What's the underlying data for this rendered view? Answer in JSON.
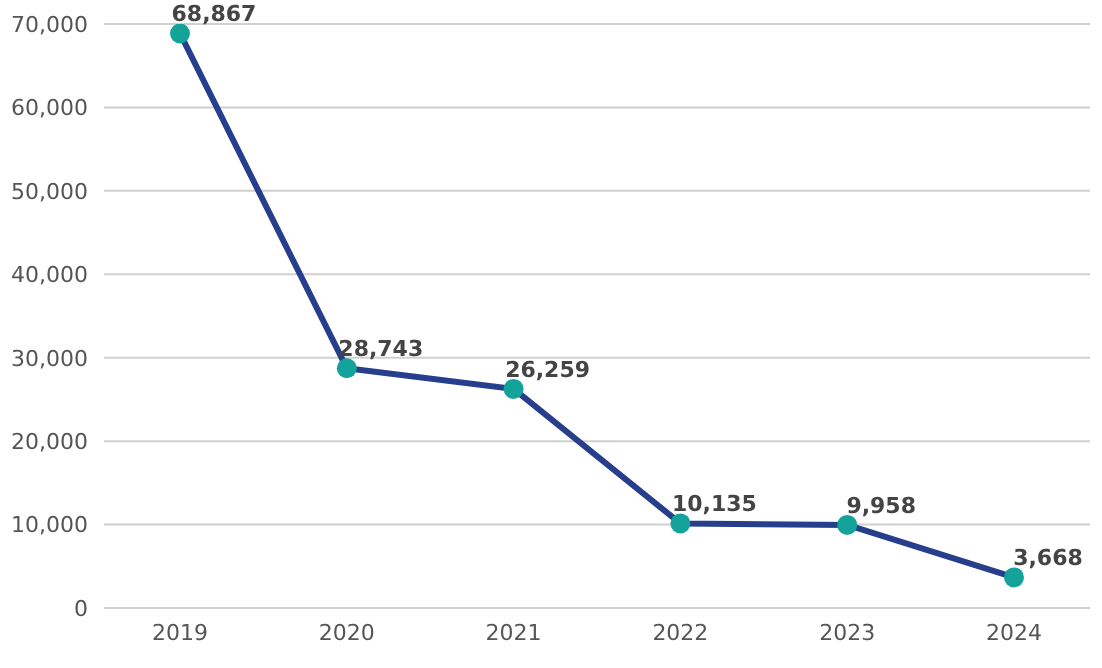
{
  "chart_data": {
    "type": "line",
    "categories": [
      "2019",
      "2020",
      "2021",
      "2022",
      "2023",
      "2024"
    ],
    "series": [
      {
        "color": "#263e8c",
        "colors": [
          "#14a39a",
          "#14a39a",
          "#14a39a",
          "#14a39a",
          "#14a39a",
          "#14a39a"
        ],
        "values": [
          68867,
          28743,
          26259,
          10135,
          9958,
          3668
        ],
        "value_labels": [
          "68,867",
          "28,743",
          "26,259",
          "10,135",
          "9,958",
          "3,668"
        ]
      }
    ],
    "ylim": [
      0,
      70000
    ],
    "yticks": [
      {
        "value": 0,
        "label": "0"
      },
      {
        "value": 10000,
        "label": "10,000"
      },
      {
        "value": 20000,
        "label": "20,000"
      },
      {
        "value": 30000,
        "label": "30,000"
      },
      {
        "value": 40000,
        "label": "40,000"
      },
      {
        "value": 50000,
        "label": "50,000"
      },
      {
        "value": 60000,
        "label": "60,000"
      },
      {
        "value": 70000,
        "label": "70,000"
      }
    ],
    "grid": "y",
    "marker": "circle",
    "line_style": "solid"
  }
}
